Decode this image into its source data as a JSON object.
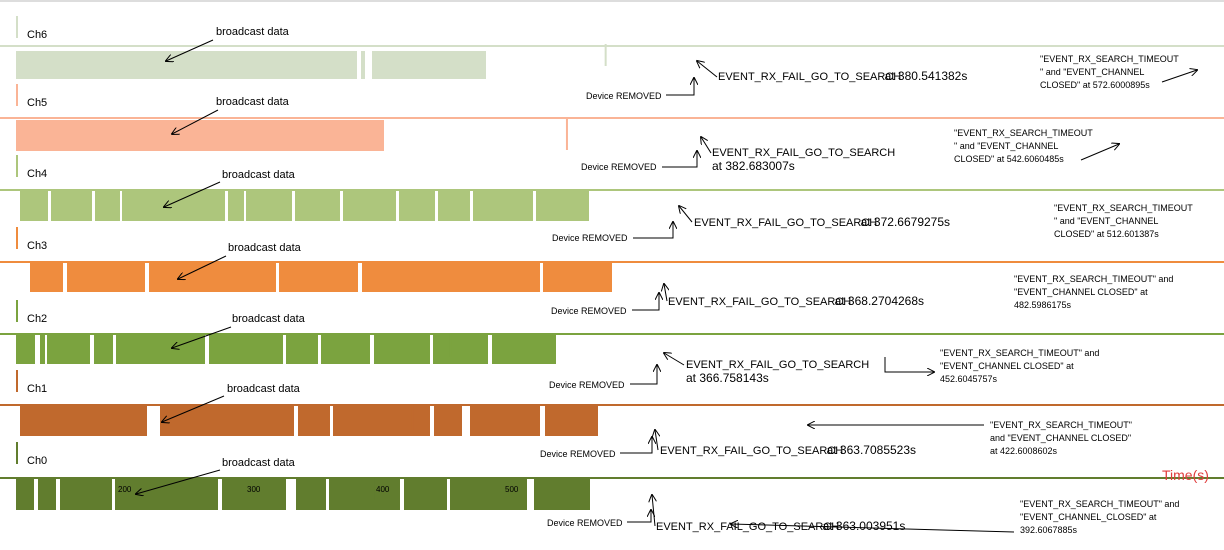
{
  "chart_data": {
    "type": "timeline",
    "time_label": "Time(s)",
    "x_ticks": [
      "200",
      "300",
      "400",
      "500"
    ],
    "x_tick_values": [
      200,
      300,
      400,
      500
    ],
    "channels": [
      {
        "name": "Ch6",
        "color": "#d4dfc8",
        "broadcast_label": "broadcast data",
        "removed_label": "Device REMOVED",
        "fail_event": "EVENT_RX_FAIL_GO_TO_SEARCH",
        "fail_time": "at 380.541382s",
        "fail_time_value": 380.541382,
        "timeout_lines": [
          "\"EVENT_RX_SEARCH_TIMEOUT",
          "\" and \"EVENT_CHANNEL",
          "CLOSED\" at 572.6000895s"
        ],
        "timeout_time_value": 572.6000895
      },
      {
        "name": "Ch5",
        "color": "#fab496",
        "broadcast_label": "broadcast data",
        "removed_label": "Device REMOVED",
        "fail_event": "EVENT_RX_FAIL_GO_TO_SEARCH",
        "fail_time": "at 382.683007s",
        "fail_time_value": 382.683007,
        "timeout_lines": [
          "\"EVENT_RX_SEARCH_TIMEOUT",
          "\" and \"EVENT_CHANNEL",
          "CLOSED\" at 542.6060485s"
        ],
        "timeout_time_value": 542.6060485
      },
      {
        "name": "Ch4",
        "color": "#adc67c",
        "broadcast_label": "broadcast data",
        "removed_label": "Device REMOVED",
        "fail_event": "EVENT_RX_FAIL_GO_TO_SEARCH",
        "fail_time": "at 372.6679275s",
        "fail_time_value": 372.6679275,
        "timeout_lines": [
          "\"EVENT_RX_SEARCH_TIMEOUT",
          "\" and \"EVENT_CHANNEL",
          "CLOSED\" at 512.601387s"
        ],
        "timeout_time_value": 512.601387
      },
      {
        "name": "Ch3",
        "color": "#ef8c3e",
        "broadcast_label": "broadcast data",
        "removed_label": "Device REMOVED",
        "fail_event": "EVENT_RX_FAIL_GO_TO_SEARCH",
        "fail_time": "at 368.2704268s",
        "fail_time_value": 368.2704268,
        "timeout_lines": [
          "\"EVENT_RX_SEARCH_TIMEOUT\" and",
          "\"EVENT_CHANNEL CLOSED\" at",
          "482.5986175s"
        ],
        "timeout_time_value": 482.5986175
      },
      {
        "name": "Ch2",
        "color": "#7ba33f",
        "broadcast_label": "broadcast data",
        "removed_label": "Device REMOVED",
        "fail_event": "EVENT_RX_FAIL_GO_TO_SEARCH",
        "fail_time": "at 366.758143s",
        "fail_time_value": 366.758143,
        "timeout_lines": [
          "\"EVENT_RX_SEARCH_TIMEOUT\" and",
          "\"EVENT_CHANNEL CLOSED\" at",
          "452.6045757s"
        ],
        "timeout_time_value": 452.6045757
      },
      {
        "name": "Ch1",
        "color": "#c0692d",
        "broadcast_label": "broadcast data",
        "removed_label": "Device REMOVED",
        "fail_event": "EVENT_RX_FAIL_GO_TO_SEARCH",
        "fail_time": "at 363.7085523s",
        "fail_time_value": 363.7085523,
        "timeout_lines": [
          "\"EVENT_RX_SEARCH_TIMEOUT\"",
          "and \"EVENT_CHANNEL CLOSED\"",
          "at 422.6008602s"
        ],
        "timeout_time_value": 422.6008602
      },
      {
        "name": "Ch0",
        "color": "#617d2e",
        "broadcast_label": "broadcast data",
        "removed_label": "Device REMOVED",
        "fail_event": "EVENT_RX_FAIL_GO_TO_SEARCH",
        "fail_time": "at 363.003951s",
        "fail_time_value": 363.003951,
        "timeout_lines": [
          "\"EVENT_RX_SEARCH_TIMEOUT\" and",
          "\"EVENT_CHANNEL_CLOSED\" at",
          "392.6067885s"
        ],
        "timeout_time_value": 392.6067885
      }
    ]
  }
}
